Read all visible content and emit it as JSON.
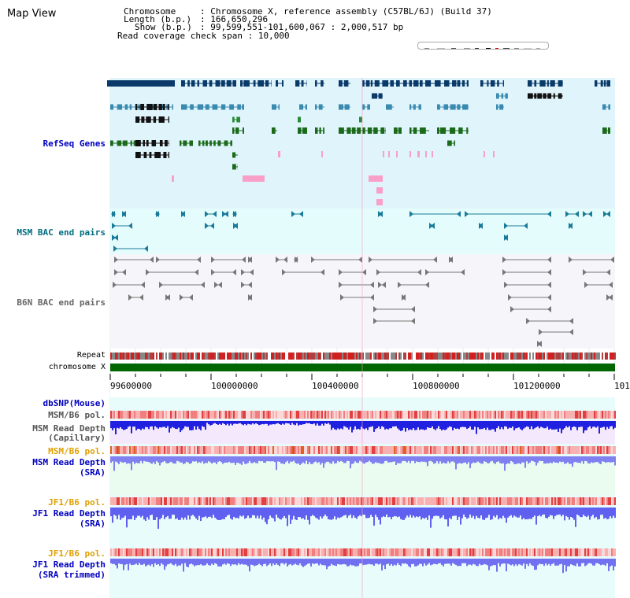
{
  "page": {
    "title": "Map View"
  },
  "header": {
    "chromosome_label": "Chromosome",
    "chromosome_value": "Chromosome X, reference assembly (C57BL/6J) (Build 37)",
    "length_label": "Length (b.p.)",
    "length_value": "166,650,296",
    "show_label": "Show (b.p.)",
    "show_value": "99,599,551-101,600,067 : 2,000,517 bp",
    "coverage_label": "Read coverage check span",
    "coverage_value": "10,000"
  },
  "tracks": {
    "refseq": "RefSeq Genes",
    "msm_bac": "MSM BAC end pairs",
    "b6n_bac": "B6N BAC end pairs",
    "repeat": "Repeat",
    "chromosome": "chromosome X",
    "dbsnp": "dbSNP(Mouse)",
    "msm_b6_pol": "MSM/B6 pol.",
    "msm_depth_cap_1": "MSM Read Depth",
    "msm_depth_cap_2": "(Capillary)",
    "msm_b6_pol_2": "MSM/B6 pol.",
    "msm_depth_sra_1": "MSM Read Depth",
    "msm_depth_sra_2": "(SRA)",
    "jf1_b6_pol": "JF1/B6 pol.",
    "jf1_depth_sra_1": "JF1 Read Depth",
    "jf1_depth_sra_2": "(SRA)",
    "jf1_b6_pol_2": "JF1/B6 pol.",
    "jf1_depth_trim_1": "JF1 Read Depth",
    "jf1_depth_trim_2": "(SRA trimmed)"
  },
  "axis": {
    "ticks": [
      "99600000",
      "100000000",
      "100400000",
      "100800000",
      "101200000",
      "101"
    ]
  },
  "colors": {
    "refseq_bg": "#e0f4fb",
    "bac_bg": "#e4fcfc",
    "label_blue": "#0000c0",
    "label_orange": "#e0a000",
    "label_teal": "#006c80",
    "chromosome_green": "#006600"
  }
}
